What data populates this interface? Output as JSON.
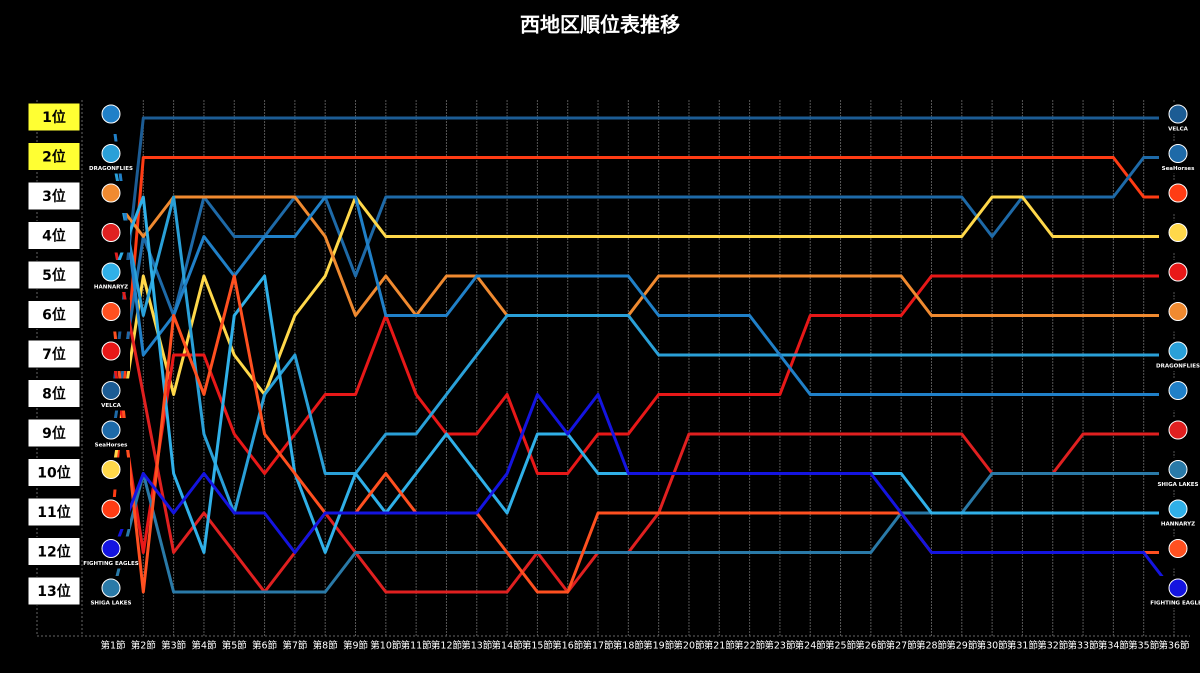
{
  "chart_data": {
    "type": "bump",
    "title": "西地区順位表推移",
    "categories": [
      "第1節",
      "第2節",
      "第3節",
      "第4節",
      "第5節",
      "第6節",
      "第7節",
      "第8節",
      "第9節",
      "第10節",
      "第11節",
      "第12節",
      "第13節",
      "第14節",
      "第15節",
      "第16節",
      "第17節",
      "第18節",
      "第19節",
      "第20節",
      "第21節",
      "第22節",
      "第23節",
      "第24節",
      "第25節",
      "第26節",
      "第27節",
      "第28節",
      "第29節",
      "第30節",
      "第31節",
      "第32節",
      "第33節",
      "第34節",
      "第35節",
      "第36節"
    ],
    "ylim": [
      13,
      1
    ],
    "yticks": [
      {
        "value": 1,
        "label": "1位",
        "color": "#ffff33"
      },
      {
        "value": 2,
        "label": "2位",
        "color": "#ffff33"
      },
      {
        "value": 3,
        "label": "3位",
        "color": "#ffffff"
      },
      {
        "value": 4,
        "label": "4位",
        "color": "#ffffff"
      },
      {
        "value": 5,
        "label": "5位",
        "color": "#ffffff"
      },
      {
        "value": 6,
        "label": "6位",
        "color": "#ffffff"
      },
      {
        "value": 7,
        "label": "7位",
        "color": "#ffffff"
      },
      {
        "value": 8,
        "label": "8位",
        "color": "#ffffff"
      },
      {
        "value": 9,
        "label": "9位",
        "color": "#ffffff"
      },
      {
        "value": 10,
        "label": "10位",
        "color": "#ffffff"
      },
      {
        "value": 11,
        "label": "11位",
        "color": "#ffffff"
      },
      {
        "value": 12,
        "label": "12位",
        "color": "#ffffff"
      },
      {
        "value": 13,
        "label": "13位",
        "color": "#ffffff"
      }
    ],
    "grid": true,
    "series": [
      {
        "name": "VELCA",
        "color": "#1c5c94",
        "values": [
          8,
          1,
          1,
          1,
          1,
          1,
          1,
          1,
          1,
          1,
          1,
          1,
          1,
          1,
          1,
          1,
          1,
          1,
          1,
          1,
          1,
          1,
          1,
          1,
          1,
          1,
          1,
          1,
          1,
          1,
          1,
          1,
          1,
          1,
          1,
          1
        ]
      },
      {
        "color": "#ff3c14",
        "values": [
          11,
          2,
          2,
          2,
          2,
          2,
          2,
          2,
          2,
          2,
          2,
          2,
          2,
          2,
          2,
          2,
          2,
          2,
          2,
          2,
          2,
          2,
          2,
          2,
          2,
          2,
          2,
          2,
          2,
          2,
          2,
          2,
          2,
          2,
          3,
          3
        ]
      },
      {
        "name": "SeaHorses",
        "color": "#1e6aa8",
        "values": [
          9,
          4,
          6,
          3,
          4,
          4,
          3,
          3,
          5,
          3,
          3,
          3,
          3,
          3,
          3,
          3,
          3,
          3,
          3,
          3,
          3,
          3,
          3,
          3,
          3,
          3,
          3,
          3,
          3,
          4,
          3,
          3,
          3,
          3,
          2,
          2
        ]
      },
      {
        "color": "#ffd84a",
        "values": [
          10,
          5,
          8,
          5,
          7,
          8,
          6,
          5,
          3,
          4,
          4,
          4,
          4,
          4,
          4,
          4,
          4,
          4,
          4,
          4,
          4,
          4,
          4,
          4,
          4,
          4,
          4,
          4,
          4,
          3,
          3,
          4,
          4,
          4,
          4,
          4
        ]
      },
      {
        "color": "#e81818",
        "values": [
          7,
          12,
          7,
          7,
          9,
          10,
          9,
          8,
          8,
          6,
          8,
          9,
          9,
          8,
          10,
          10,
          9,
          9,
          8,
          8,
          8,
          8,
          8,
          6,
          6,
          6,
          6,
          5,
          5,
          5,
          5,
          5,
          5,
          5,
          5,
          5
        ]
      },
      {
        "color": "#f08a30",
        "values": [
          3,
          4,
          3,
          3,
          3,
          3,
          3,
          4,
          6,
          5,
          6,
          5,
          5,
          6,
          6,
          6,
          6,
          6,
          5,
          5,
          5,
          5,
          5,
          5,
          5,
          5,
          5,
          6,
          6,
          6,
          6,
          6,
          6,
          6,
          6,
          6
        ]
      },
      {
        "name": "DRAGONFLIES",
        "color": "#2aa0d8",
        "values": [
          2,
          6,
          3,
          9,
          11,
          8,
          7,
          10,
          10,
          9,
          9,
          8,
          7,
          6,
          6,
          6,
          6,
          6,
          7,
          7,
          7,
          7,
          7,
          7,
          7,
          7,
          7,
          7,
          7,
          7,
          7,
          7,
          7,
          7,
          7,
          7
        ]
      },
      {
        "color": "#2080c8",
        "values": [
          1,
          7,
          6,
          4,
          5,
          4,
          4,
          3,
          3,
          6,
          6,
          6,
          5,
          5,
          5,
          5,
          5,
          5,
          6,
          6,
          6,
          6,
          7,
          8,
          8,
          8,
          8,
          8,
          8,
          8,
          8,
          8,
          8,
          8,
          8,
          8
        ]
      },
      {
        "color": "#e02020",
        "values": [
          4,
          8,
          12,
          11,
          12,
          13,
          12,
          11,
          12,
          13,
          13,
          13,
          13,
          13,
          12,
          13,
          12,
          12,
          11,
          9,
          9,
          9,
          9,
          9,
          9,
          9,
          9,
          9,
          9,
          10,
          10,
          10,
          9,
          9,
          9,
          9
        ]
      },
      {
        "name": "SHIGA LAKES",
        "color": "#2a7aa8",
        "values": [
          13,
          10,
          13,
          13,
          13,
          13,
          13,
          13,
          12,
          12,
          12,
          12,
          12,
          12,
          12,
          12,
          12,
          12,
          12,
          12,
          12,
          12,
          12,
          12,
          12,
          12,
          11,
          11,
          11,
          10,
          10,
          10,
          10,
          10,
          10,
          10
        ]
      },
      {
        "name": "HANNARYZ",
        "color": "#30b0e8",
        "values": [
          5,
          3,
          10,
          12,
          6,
          5,
          10,
          12,
          10,
          11,
          10,
          9,
          10,
          11,
          9,
          9,
          10,
          10,
          10,
          10,
          10,
          10,
          10,
          10,
          10,
          10,
          10,
          11,
          11,
          11,
          11,
          11,
          11,
          11,
          11,
          11
        ]
      },
      {
        "color": "#ff5020",
        "values": [
          6,
          13,
          6,
          8,
          5,
          9,
          10,
          11,
          11,
          10,
          11,
          11,
          11,
          12,
          13,
          13,
          11,
          11,
          11,
          11,
          11,
          11,
          11,
          11,
          11,
          11,
          11,
          12,
          12,
          12,
          12,
          12,
          12,
          12,
          12,
          12
        ]
      },
      {
        "name": "FIGHTING EAGLES",
        "color": "#1414e0",
        "values": [
          12,
          10,
          11,
          10,
          11,
          11,
          12,
          11,
          11,
          11,
          11,
          11,
          11,
          10,
          8,
          9,
          8,
          10,
          10,
          10,
          10,
          10,
          10,
          10,
          10,
          10,
          11,
          12,
          12,
          12,
          12,
          12,
          12,
          12,
          12,
          13
        ]
      }
    ]
  }
}
